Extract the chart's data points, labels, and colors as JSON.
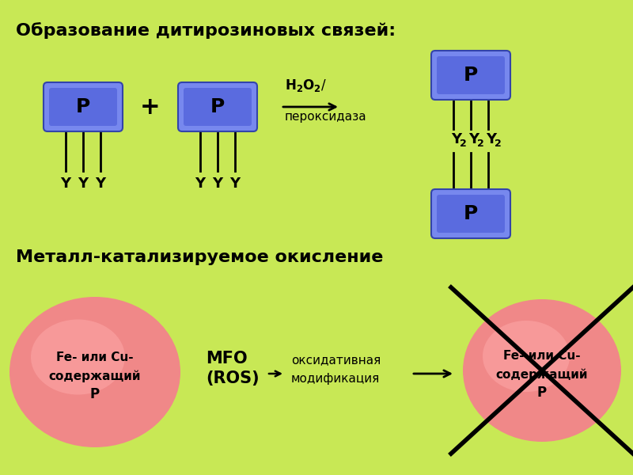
{
  "bg_color": "#c8e855",
  "title1": "Образование дитирозиновых связей:",
  "title2": "Металл-катализируемое окисление",
  "box_color_face": "#5566dd",
  "box_color_edge": "#3344aa",
  "box_label": "P",
  "ellipse_outer_color": "#f07070",
  "ellipse_inner_color": "#f09090",
  "text_color": "#000000",
  "h2o2_text": "H₂O₂/",
  "perox_text": "пероксидаза",
  "mfo_line1": "MFO",
  "mfo_line2": "(ROS)",
  "oxid_line1": "оксидативная",
  "oxid_line2": "модификация",
  "ellipse_label_l1": "Fe- или Cu-",
  "ellipse_label_l2": "содержащий",
  "ellipse_label_l3": "P"
}
